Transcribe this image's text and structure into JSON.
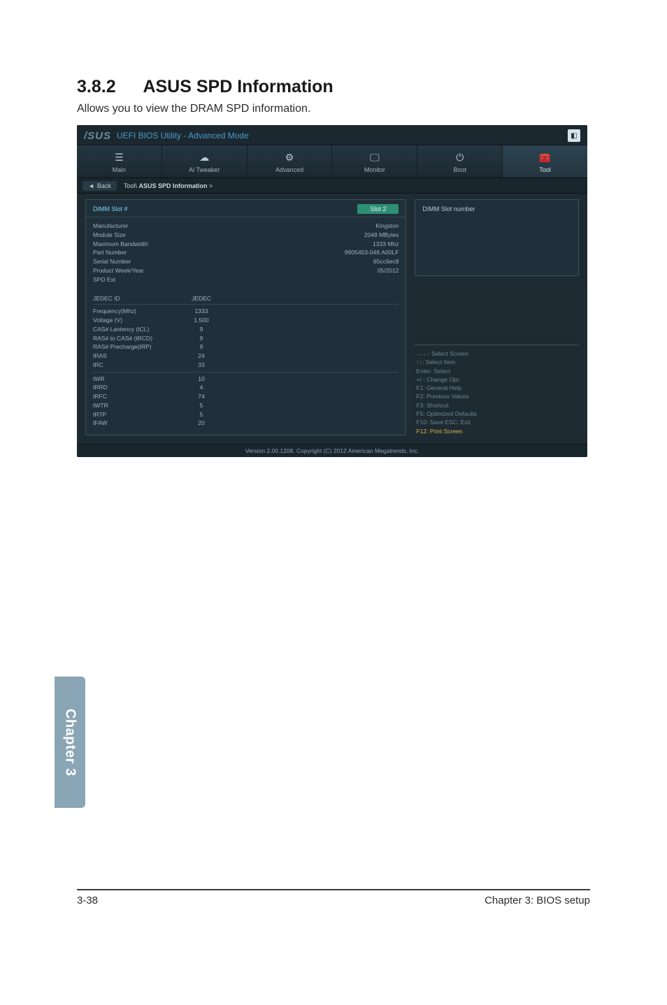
{
  "page": {
    "section_number": "3.8.2",
    "section_title": "ASUS SPD Information",
    "subtitle": "Allows you to view the DRAM SPD information.",
    "chapter_tab": "Chapter 3",
    "footer_left": "3-38",
    "footer_right": "Chapter 3: BIOS setup"
  },
  "bios": {
    "logo": "/SUS",
    "top_title": "UEFI BIOS Utility - Advanced Mode",
    "exit_glyph": "◧",
    "tabs": {
      "main": "Main",
      "ai_tweaker": "Ai  Tweaker",
      "advanced": "Advanced",
      "monitor": "Monitor",
      "boot": "Boot",
      "tool": "Tool"
    },
    "tab_icons": {
      "main": "☰",
      "ai_tweaker": "☁",
      "advanced": "⚙",
      "monitor": "🖵",
      "boot": "⏻",
      "tool": "🧰"
    },
    "back_label": "Back",
    "back_arrow": "◄",
    "breadcrumb_prefix": "Tool\\ ",
    "breadcrumb_item": "ASUS SPD Information",
    "breadcrumb_suffix": "  >",
    "slot_header": "DIMM Slot #",
    "slot_value": "Slot 2",
    "help_title": "DIMM Slot number",
    "info_rows": [
      {
        "k": "Manufacturer",
        "v": "Kingston"
      },
      {
        "k": "Module Size",
        "v": "2048 MBytes"
      },
      {
        "k": "Maximum Bandwidth",
        "v": "1333 Mhz"
      },
      {
        "k": "Part Number",
        "v": "9905403-048.A00LF"
      },
      {
        "k": "Serial Number",
        "v": "65cc6ec8"
      },
      {
        "k": "Product Week/Year",
        "v": "05/2012"
      },
      {
        "k": "SPD Ext",
        "v": ""
      }
    ],
    "jedec_id_label": "JEDEC ID",
    "jedec_col": "JEDEC",
    "jedec_block1": [
      {
        "k": "Frequency(Mhz)",
        "v": "1333"
      },
      {
        "k": "Voltage (V)",
        "v": "1.500"
      },
      {
        "k": "CAS# Lantency (tCL)",
        "v": "9"
      },
      {
        "k": "RAS# to CAS# (tRCD)",
        "v": "9"
      },
      {
        "k": "RAS# Precharge(tRP)",
        "v": "9"
      },
      {
        "k": "tRAS",
        "v": "24"
      },
      {
        "k": "tRC",
        "v": "33"
      }
    ],
    "jedec_block2": [
      {
        "k": "tWR",
        "v": "10"
      },
      {
        "k": "tRRD",
        "v": "4"
      },
      {
        "k": "tRFC",
        "v": "74"
      },
      {
        "k": "tWTR",
        "v": "5"
      },
      {
        "k": "tRTP",
        "v": "5"
      },
      {
        "k": "tFAW",
        "v": "20"
      }
    ],
    "hints": [
      {
        "text": "→←: Select Screen",
        "accent": false
      },
      {
        "text": "↑↓: Select Item",
        "accent": false
      },
      {
        "text": "Enter: Select",
        "accent": false
      },
      {
        "text": "+/-: Change Opt.",
        "accent": false
      },
      {
        "text": "F1: General Help",
        "accent": false
      },
      {
        "text": "F2: Previous Values",
        "accent": false
      },
      {
        "text": "F3: Shortcut",
        "accent": false
      },
      {
        "text": "F5: Optimized Defaults",
        "accent": false
      },
      {
        "text": "F10: Save   ESC: Exit",
        "accent": false
      },
      {
        "text": "F12: Print Screen",
        "accent": true
      }
    ],
    "footer": "Version  2.00.1208.   Copyright  (C)  2012  American  Megatrends,  Inc."
  },
  "colors": {
    "bios_bg": "#1e2b33",
    "panel_border": "#3a5260",
    "accent_blue": "#7fd4ff",
    "pill_green": "#2e8f74",
    "hint_accent": "#d6b84a",
    "chapter_tab": "#8aa5b5"
  }
}
